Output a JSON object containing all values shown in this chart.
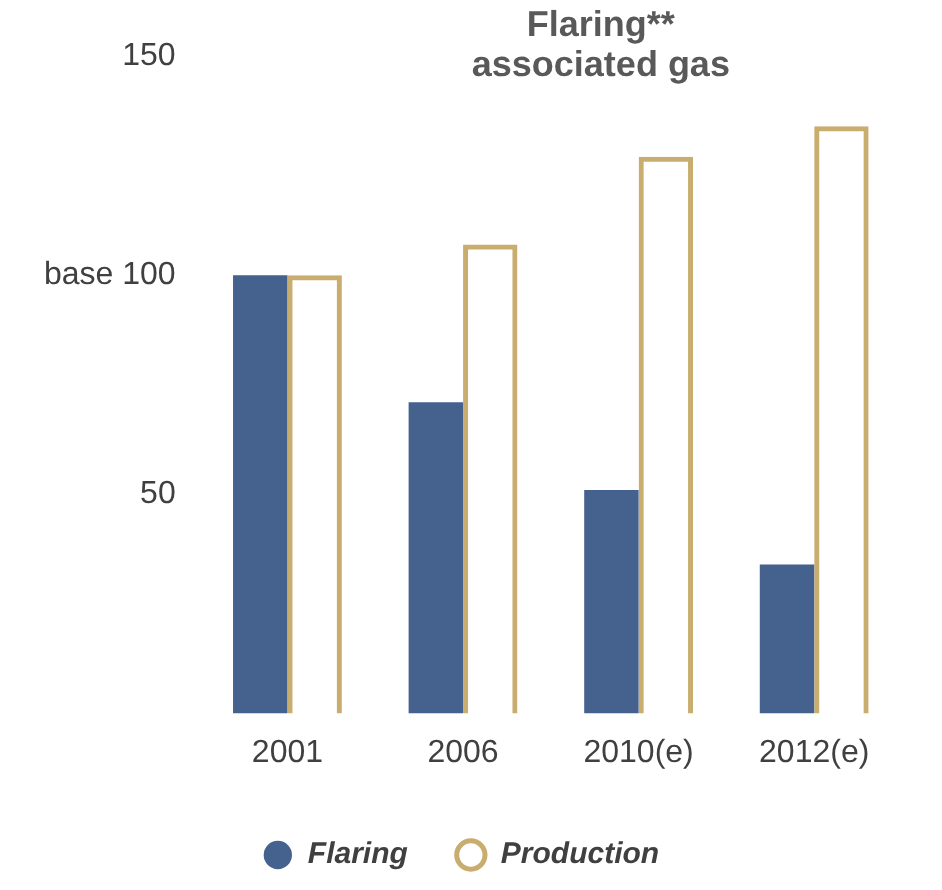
{
  "chart_data": {
    "type": "bar",
    "title": "Flaring**\nassociated gas",
    "categories": [
      "2001",
      "2006",
      "2010(e)",
      "2012(e)"
    ],
    "series": [
      {
        "name": "Flaring",
        "color": "#45618e",
        "values": [
          100,
          71,
          51,
          34
        ]
      },
      {
        "name": "Production",
        "color": "#c9ad6e",
        "values": [
          100,
          107,
          127,
          134
        ],
        "line_style": "dashed"
      }
    ],
    "ylim": [
      0,
      150
    ],
    "yticks": [
      50,
      {
        "value": 100,
        "label": "base 100"
      },
      150
    ],
    "grid": false,
    "legend": "bottom"
  }
}
